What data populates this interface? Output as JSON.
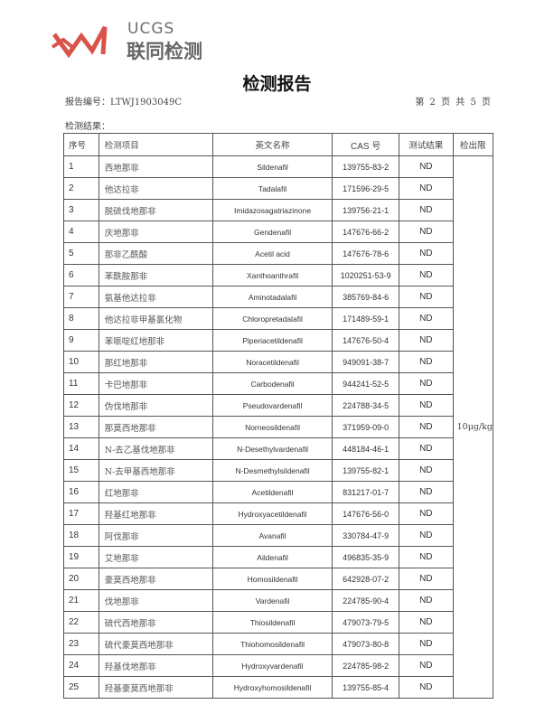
{
  "header": {
    "brand_en": "UCGS",
    "brand_cn": "联同检测",
    "brand_color": "#d9534a",
    "title": "检测报告",
    "report_number": "报告编号：LTWJ1903049C",
    "page_info": "第 2 页 共 5 页",
    "section_label": "检测结果："
  },
  "table": {
    "columns": [
      "序号",
      "检测项目",
      "英文名称",
      "CAS 号",
      "测试结果",
      "检出限"
    ],
    "detection_limit": "10μg/kg",
    "rows": [
      [
        "1",
        "西地那非",
        "Sildenafil",
        "139755-83-2",
        "ND"
      ],
      [
        "2",
        "他达拉非",
        "Tadalafil",
        "171596-29-5",
        "ND"
      ],
      [
        "3",
        "脱硫伐地那非",
        "Imidazosagatriazinone",
        "139756-21-1",
        "ND"
      ],
      [
        "4",
        "庆地那非",
        "Gendenafil",
        "147676-66-2",
        "ND"
      ],
      [
        "5",
        "那非乙酰酸",
        "Acetil acid",
        "147676-78-6",
        "ND"
      ],
      [
        "6",
        "苯酰胺那非",
        "Xanthoanthrafil",
        "1020251-53-9",
        "ND"
      ],
      [
        "7",
        "氨基他达拉非",
        "Aminotadalafil",
        "385769-84-6",
        "ND"
      ],
      [
        "8",
        "他达拉非甲基氯化物",
        "Chloropretadalafil",
        "171489-59-1",
        "ND"
      ],
      [
        "9",
        "苯哌啶红地那非",
        "Piperiacetildenafil",
        "147676-50-4",
        "ND"
      ],
      [
        "10",
        "那红地那非",
        "Noracetildenafil",
        "949091-38-7",
        "ND"
      ],
      [
        "11",
        "卡巴地那非",
        "Carbodenafil",
        "944241-52-5",
        "ND"
      ],
      [
        "12",
        "伪伐地那非",
        "Pseudovardenafil",
        "224788-34-5",
        "ND"
      ],
      [
        "13",
        "那莫西地那非",
        "Norneosildenafil",
        "371959-09-0",
        "ND"
      ],
      [
        "14",
        "N-去乙基伐地那非",
        "N-Desethylvardenafil",
        "448184-46-1",
        "ND"
      ],
      [
        "15",
        "N-去甲基西地那非",
        "N-Desmethylsildenafil",
        "139755-82-1",
        "ND"
      ],
      [
        "16",
        "红地那非",
        "Acetildenafil",
        "831217-01-7",
        "ND"
      ],
      [
        "17",
        "羟基红地那非",
        "Hydroxyacetildenafil",
        "147676-56-0",
        "ND"
      ],
      [
        "18",
        "阿伐那非",
        "Avanafil",
        "330784-47-9",
        "ND"
      ],
      [
        "19",
        "艾地那非",
        "Aildenafil",
        "496835-35-9",
        "ND"
      ],
      [
        "20",
        "豪莫西地那非",
        "Homosildenafil",
        "642928-07-2",
        "ND"
      ],
      [
        "21",
        "伐地那非",
        "Vardenafil",
        "224785-90-4",
        "ND"
      ],
      [
        "22",
        "硫代西地那非",
        "Thiosildenafil",
        "479073-79-5",
        "ND"
      ],
      [
        "23",
        "硫代豪莫西地那非",
        "Thiohomosildenafil",
        "479073-80-8",
        "ND"
      ],
      [
        "24",
        "羟基伐地那非",
        "Hydroxyvardenafil",
        "224785-98-2",
        "ND"
      ],
      [
        "25",
        "羟基豪莫西地那非",
        "Hydroxyhomosildenafil",
        "139755-85-4",
        "ND"
      ]
    ]
  }
}
